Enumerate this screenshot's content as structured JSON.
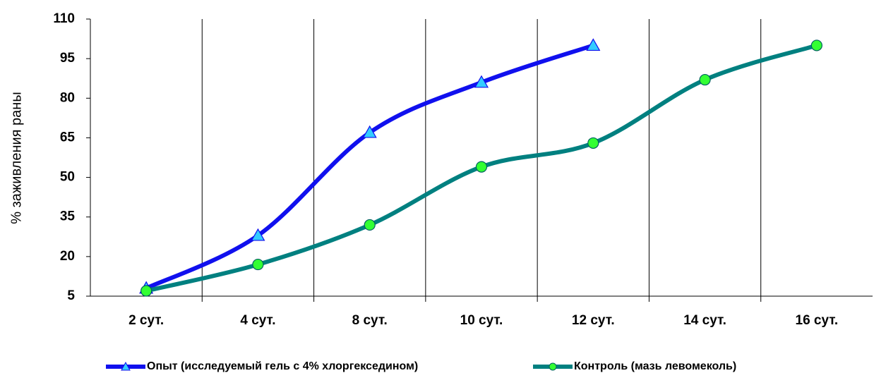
{
  "chart_data": {
    "type": "line",
    "ylabel": "% заживления раны",
    "categories": [
      "2 сут.",
      "4 сут.",
      "8 сут.",
      "10 сут.",
      "12 сут.",
      "14 сут.",
      "16 сут."
    ],
    "series": [
      {
        "name": "Опыт (исследуемый гель с 4% хлоргекседином)",
        "color": "#1010ee",
        "marker": "triangle",
        "marker_color": "#33ccff",
        "values": [
          8,
          28,
          67,
          86,
          100,
          null,
          null
        ]
      },
      {
        "name": "Контроль (мазь левомеколь)",
        "color": "#008080",
        "marker": "circle",
        "marker_color": "#33ff33",
        "values": [
          7,
          17,
          32,
          54,
          63,
          87,
          100
        ]
      }
    ],
    "ylim": [
      5,
      110
    ],
    "yticks": [
      5,
      20,
      35,
      50,
      65,
      80,
      95,
      110
    ],
    "smooth": true,
    "legend": "bottom"
  }
}
